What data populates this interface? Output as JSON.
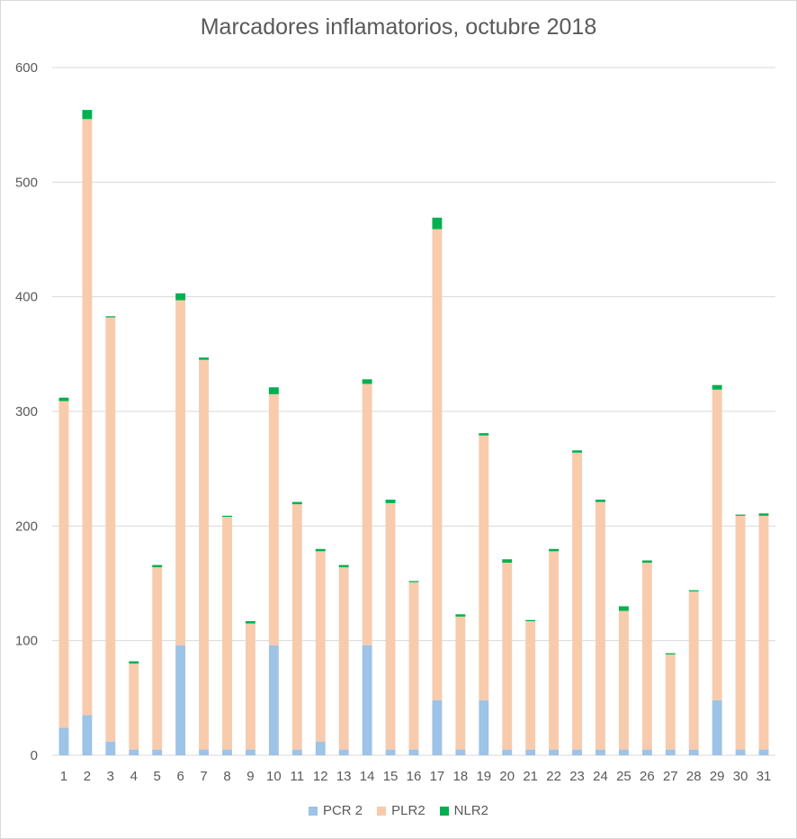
{
  "chart_data": {
    "type": "bar",
    "stacked": true,
    "title": "Marcadores inflamatorios, octubre 2018",
    "xlabel": "",
    "ylabel": "",
    "ylim": [
      0,
      600
    ],
    "yticks": [
      0,
      100,
      200,
      300,
      400,
      500,
      600
    ],
    "grid": true,
    "legend_position": "bottom",
    "categories": [
      "1",
      "2",
      "3",
      "4",
      "5",
      "6",
      "7",
      "8",
      "9",
      "10",
      "11",
      "12",
      "13",
      "14",
      "15",
      "16",
      "17",
      "18",
      "19",
      "20",
      "21",
      "22",
      "23",
      "24",
      "25",
      "26",
      "27",
      "28",
      "29",
      "30",
      "31"
    ],
    "series": [
      {
        "name": "PCR 2",
        "color": "#9dc3e6",
        "values": [
          24,
          35,
          12,
          5,
          5,
          96,
          5,
          5,
          5,
          96,
          5,
          12,
          5,
          96,
          5,
          5,
          48,
          5,
          48,
          5,
          5,
          5,
          5,
          5,
          5,
          5,
          5,
          5,
          48,
          5,
          5
        ]
      },
      {
        "name": "PLR2",
        "color": "#f8cbad",
        "values": [
          285,
          520,
          370,
          75,
          159,
          301,
          340,
          203,
          110,
          219,
          214,
          166,
          159,
          228,
          215,
          146,
          411,
          116,
          231,
          163,
          112,
          173,
          259,
          216,
          121,
          163,
          83,
          138,
          271,
          204,
          204
        ]
      },
      {
        "name": "NLR2",
        "color": "#00b050",
        "values": [
          3,
          8,
          1,
          2,
          2,
          6,
          2,
          1,
          2,
          6,
          2,
          2,
          2,
          4,
          3,
          1,
          10,
          2,
          2,
          3,
          1,
          2,
          2,
          2,
          4,
          2,
          1,
          1,
          4,
          1,
          2
        ]
      }
    ]
  }
}
